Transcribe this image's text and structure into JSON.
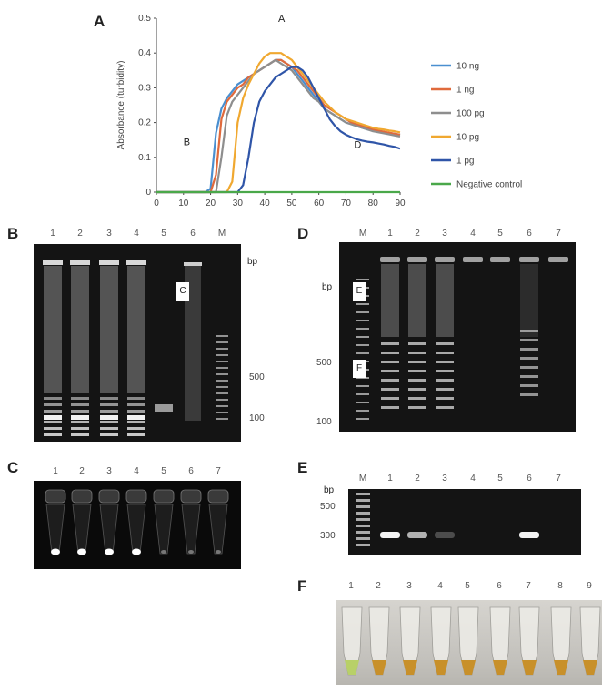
{
  "panels": {
    "a": "A",
    "b": "B",
    "c": "C",
    "d": "D",
    "e": "E",
    "f": "F"
  },
  "chart_data": {
    "type": "line",
    "ylabel": "Absorbance (turbidity)",
    "xlim": [
      0,
      90
    ],
    "ylim": [
      0,
      0.5
    ],
    "xticks": [
      "0",
      "10",
      "20",
      "30",
      "40",
      "50",
      "60",
      "70",
      "80",
      "90"
    ],
    "yticks": [
      "0",
      "0.1",
      "0.2",
      "0.3",
      "0.4",
      "0.5"
    ],
    "annotations": [
      "A",
      "B",
      "D"
    ],
    "legend_position": "right",
    "x": [
      0,
      5,
      10,
      15,
      18,
      20,
      22,
      24,
      26,
      28,
      30,
      32,
      34,
      36,
      38,
      40,
      42,
      44,
      46,
      48,
      50,
      52,
      54,
      56,
      58,
      60,
      62,
      64,
      66,
      68,
      70,
      72,
      74,
      76,
      78,
      80,
      82,
      84,
      86,
      88,
      90
    ],
    "series": [
      {
        "name": "10 ng",
        "color": "#4a8fd0",
        "values": [
          0,
          0,
          0,
          0,
          0,
          0.01,
          0.17,
          0.24,
          0.27,
          0.29,
          0.31,
          0.32,
          0.33,
          0.34,
          0.35,
          0.36,
          0.37,
          0.38,
          0.38,
          0.37,
          0.36,
          0.34,
          0.32,
          0.3,
          0.28,
          0.26,
          0.24,
          0.23,
          0.22,
          0.21,
          0.2,
          0.195,
          0.19,
          0.185,
          0.18,
          0.178,
          0.175,
          0.172,
          0.17,
          0.168,
          0.165
        ]
      },
      {
        "name": "1 ng",
        "color": "#e06a3c",
        "values": [
          0,
          0,
          0,
          0,
          0,
          0,
          0.05,
          0.21,
          0.26,
          0.28,
          0.3,
          0.31,
          0.33,
          0.34,
          0.35,
          0.36,
          0.37,
          0.38,
          0.38,
          0.37,
          0.36,
          0.35,
          0.33,
          0.31,
          0.29,
          0.27,
          0.25,
          0.24,
          0.23,
          0.22,
          0.21,
          0.2,
          0.195,
          0.19,
          0.185,
          0.18,
          0.177,
          0.174,
          0.171,
          0.168,
          0.165
        ]
      },
      {
        "name": "100 pg",
        "color": "#8e8e8e",
        "values": [
          0,
          0,
          0,
          0,
          0,
          0,
          0,
          0.1,
          0.22,
          0.26,
          0.28,
          0.3,
          0.32,
          0.34,
          0.35,
          0.36,
          0.37,
          0.38,
          0.37,
          0.36,
          0.35,
          0.33,
          0.31,
          0.29,
          0.27,
          0.26,
          0.24,
          0.23,
          0.22,
          0.21,
          0.2,
          0.195,
          0.19,
          0.185,
          0.18,
          0.175,
          0.172,
          0.169,
          0.166,
          0.163,
          0.16
        ]
      },
      {
        "name": "10 pg",
        "color": "#f0a830",
        "values": [
          0,
          0,
          0,
          0,
          0,
          0,
          0,
          0,
          0,
          0.03,
          0.2,
          0.27,
          0.31,
          0.34,
          0.37,
          0.39,
          0.4,
          0.4,
          0.4,
          0.39,
          0.38,
          0.36,
          0.34,
          0.32,
          0.3,
          0.28,
          0.26,
          0.245,
          0.23,
          0.22,
          0.21,
          0.205,
          0.2,
          0.195,
          0.19,
          0.185,
          0.182,
          0.18,
          0.177,
          0.175,
          0.172
        ]
      },
      {
        "name": "1 pg",
        "color": "#2f55a8",
        "values": [
          0,
          0,
          0,
          0,
          0,
          0,
          0,
          0,
          0,
          0,
          0,
          0.02,
          0.1,
          0.2,
          0.26,
          0.29,
          0.31,
          0.33,
          0.34,
          0.35,
          0.36,
          0.36,
          0.35,
          0.33,
          0.3,
          0.27,
          0.24,
          0.21,
          0.19,
          0.175,
          0.165,
          0.158,
          0.152,
          0.148,
          0.145,
          0.143,
          0.14,
          0.137,
          0.133,
          0.13,
          0.125
        ]
      },
      {
        "name": "Negative control",
        "color": "#4aa84a",
        "values": [
          0,
          0,
          0,
          0,
          0,
          0,
          0,
          0,
          0,
          0,
          0,
          0,
          0,
          0,
          0,
          0,
          0,
          0,
          0,
          0,
          0,
          0,
          0,
          0,
          0,
          0,
          0,
          0,
          0,
          0,
          0,
          0,
          0,
          0,
          0,
          0,
          0,
          0,
          0,
          0,
          0
        ]
      }
    ]
  },
  "gel_b": {
    "lanes": [
      "1",
      "2",
      "3",
      "4",
      "5",
      "6",
      "M"
    ],
    "unit": "bp",
    "marker_labels": [
      "500",
      "100"
    ],
    "overlay": "C"
  },
  "gel_d": {
    "lanes": [
      "M",
      "1",
      "2",
      "3",
      "4",
      "5",
      "6",
      "7"
    ],
    "unit": "bp",
    "marker_labels": [
      "500",
      "100"
    ],
    "overlays": [
      "E",
      "F"
    ]
  },
  "tubes_c": {
    "lanes": [
      "1",
      "2",
      "3",
      "4",
      "5",
      "6",
      "7"
    ]
  },
  "gel_e": {
    "lanes": [
      "M",
      "1",
      "2",
      "3",
      "4",
      "5",
      "6",
      "7"
    ],
    "unit": "bp",
    "marker_labels": [
      "500",
      "300"
    ]
  },
  "tubes_f": {
    "lanes": [
      "1",
      "2",
      "3",
      "4",
      "5",
      "6",
      "7",
      "8",
      "9"
    ]
  },
  "colors": {
    "gel_background": "#121212",
    "band": "#e8e8e8",
    "tube_fluorescence": "#ffffff",
    "tube_f_green": "#b8d068",
    "tube_f_orange": "#c8902a"
  }
}
